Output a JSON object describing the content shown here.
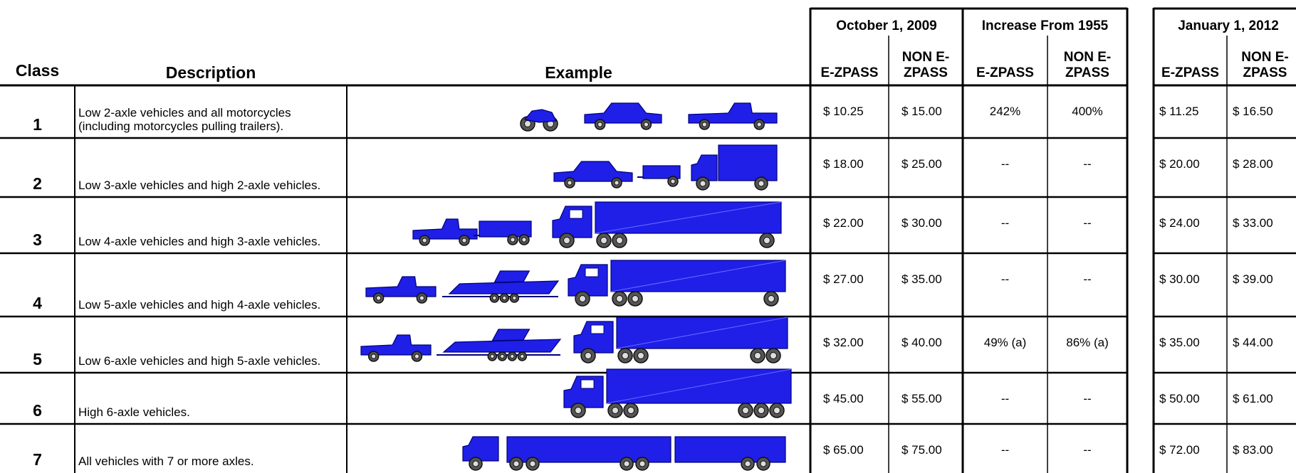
{
  "headers": {
    "class": "Class",
    "description": "Description",
    "example": "Example",
    "groups": [
      "October 1, 2009",
      "Increase From 1955",
      "January 1, 2012"
    ],
    "subheaders": [
      [
        "E-ZPASS",
        "NON E-ZPASS"
      ],
      [
        "E-ZPASS",
        "NON E-ZPASS"
      ],
      [
        "E-ZPASS",
        "NON E-ZPASS"
      ]
    ]
  },
  "rows": [
    {
      "class": 1,
      "description": "Low 2-axle vehicles and all motorcycles (including motorcycles pulling trailers).",
      "values": [
        [
          "$ 10.25",
          "$ 15.00"
        ],
        [
          "242%",
          "400%"
        ],
        [
          "$ 11.25",
          "$ 16.50"
        ]
      ]
    },
    {
      "class": 2,
      "description": "Low 3-axle vehicles and high 2-axle vehicles.",
      "values": [
        [
          "$ 18.00",
          "$ 25.00"
        ],
        [
          "--",
          "--"
        ],
        [
          "$ 20.00",
          "$ 28.00"
        ]
      ]
    },
    {
      "class": 3,
      "description": "Low 4-axle vehicles and high 3-axle vehicles.",
      "values": [
        [
          "$ 22.00",
          "$ 30.00"
        ],
        [
          "--",
          "--"
        ],
        [
          "$ 24.00",
          "$ 33.00"
        ]
      ]
    },
    {
      "class": 4,
      "description": "Low 5-axle vehicles and high 4-axle vehicles.",
      "values": [
        [
          "$ 27.00",
          "$ 35.00"
        ],
        [
          "--",
          "--"
        ],
        [
          "$ 30.00",
          "$ 39.00"
        ]
      ]
    },
    {
      "class": 5,
      "description": "Low 6-axle vehicles and high 5-axle vehicles.",
      "values": [
        [
          "$ 32.00",
          "$ 40.00"
        ],
        [
          "49% (a)",
          "86% (a)"
        ],
        [
          "$ 35.00",
          "$ 44.00"
        ]
      ]
    },
    {
      "class": 6,
      "description": "High 6-axle vehicles.",
      "values": [
        [
          "$ 45.00",
          "$ 55.00"
        ],
        [
          "--",
          "--"
        ],
        [
          "$ 50.00",
          "$ 61.00"
        ]
      ]
    },
    {
      "class": 7,
      "description": "All vehicles with 7 or more axles.",
      "values": [
        [
          "$ 65.00",
          "$ 75.00"
        ],
        [
          "--",
          "--"
        ],
        [
          "$ 72.00",
          "$ 83.00"
        ]
      ]
    }
  ]
}
